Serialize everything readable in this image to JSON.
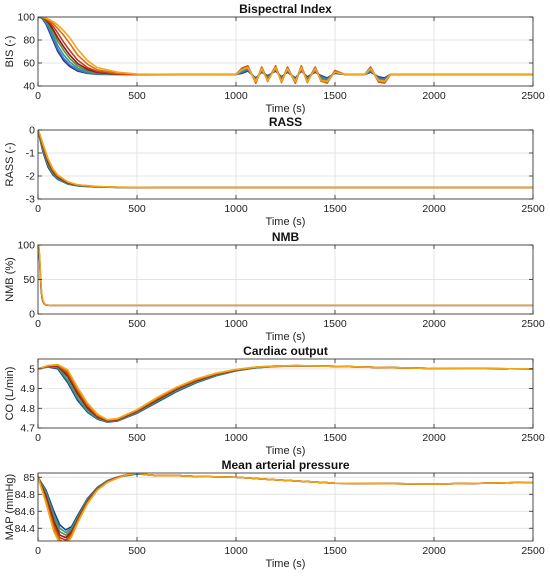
{
  "chart_data": [
    {
      "type": "line",
      "title": "Bispectral Index",
      "xlabel": "Time (s)",
      "ylabel": "BIS (-)",
      "xlim": [
        0,
        2500
      ],
      "ylim": [
        40,
        100
      ],
      "xticks": [
        0,
        500,
        1000,
        1500,
        2000,
        2500
      ],
      "yticks": [
        40,
        60,
        80,
        100
      ],
      "grid": true,
      "colors": [
        "#1f3f8f",
        "#4f6fc0",
        "#2a9a9a",
        "#6a8a3a",
        "#8b1a1a",
        "#c43a1a",
        "#e06a10",
        "#f0a818"
      ],
      "x": [
        0,
        20,
        40,
        60,
        80,
        100,
        130,
        160,
        200,
        250,
        300,
        400,
        500,
        700,
        1000,
        1030,
        1060,
        1100,
        1130,
        1160,
        1200,
        1230,
        1260,
        1300,
        1330,
        1360,
        1400,
        1430,
        1460,
        1500,
        1550,
        1650,
        1680,
        1720,
        1750,
        1780,
        1800,
        2000,
        2500
      ],
      "series": [
        {
          "values": [
            100,
            99,
            94,
            86,
            78,
            70,
            62,
            57,
            53,
            51,
            50.2,
            50,
            50,
            50,
            50,
            51,
            53,
            47,
            52,
            49,
            53,
            48,
            52,
            47,
            53,
            48,
            52,
            49,
            47,
            51,
            50,
            50,
            52,
            48,
            47,
            50,
            50,
            50,
            50
          ]
        },
        {
          "values": [
            100,
            99.5,
            95,
            88,
            80,
            72,
            64,
            58.5,
            54,
            51.5,
            50.4,
            50,
            50,
            50,
            50,
            52,
            54,
            46,
            53,
            48,
            54,
            47,
            53,
            46,
            54,
            47,
            53,
            48,
            46,
            52,
            50,
            50,
            53,
            47,
            46,
            50,
            50,
            50,
            50
          ]
        },
        {
          "values": [
            100,
            99.6,
            96,
            90,
            83,
            75,
            67,
            61,
            55.5,
            52.3,
            50.8,
            50.1,
            50,
            50,
            50,
            53,
            55,
            45,
            54,
            47,
            55,
            46,
            54,
            45,
            55,
            46,
            54,
            47,
            45,
            52,
            50,
            50,
            54,
            46,
            45,
            50,
            50,
            50,
            50
          ]
        },
        {
          "values": [
            100,
            99.7,
            97,
            92,
            86,
            79,
            71,
            64,
            57.5,
            53.3,
            51.2,
            50.2,
            50,
            50,
            50,
            54,
            56,
            44,
            55,
            46,
            56,
            45,
            55,
            44,
            56,
            45,
            55,
            46,
            44,
            53,
            50,
            50,
            55,
            45,
            44,
            50,
            50,
            50,
            50
          ]
        },
        {
          "values": [
            100,
            99.8,
            97.5,
            93.5,
            88,
            82,
            74,
            67,
            59.5,
            54.5,
            51.8,
            50.3,
            50,
            50,
            50,
            55,
            57,
            43,
            56,
            45,
            57,
            44,
            56,
            43,
            57,
            44,
            56,
            45,
            43,
            53,
            50,
            50,
            56,
            44,
            43,
            50,
            50,
            50,
            50
          ]
        },
        {
          "values": [
            100,
            99.9,
            98,
            95,
            91,
            86,
            78,
            71,
            62.5,
            56,
            52.5,
            50.5,
            50.1,
            50,
            50,
            55.5,
            57.5,
            42.5,
            56.5,
            44.5,
            57.5,
            43.5,
            56.5,
            42.5,
            57.5,
            43.5,
            56.5,
            44.5,
            42.5,
            53.5,
            50,
            50,
            56.5,
            43.5,
            42.5,
            50,
            50,
            50,
            50
          ]
        },
        {
          "values": [
            100,
            100,
            98.6,
            96.5,
            93.5,
            90,
            84,
            77,
            67,
            59,
            54,
            51,
            50.2,
            50,
            50,
            55,
            57,
            43,
            56,
            44,
            57,
            43,
            56,
            43,
            57,
            43,
            56,
            44,
            43,
            53,
            50,
            50,
            56,
            44,
            43,
            50,
            50,
            50,
            50
          ]
        },
        {
          "values": [
            100,
            100,
            99,
            97.5,
            95.5,
            93,
            88,
            82,
            72,
            62,
            56,
            52,
            50.4,
            50,
            50,
            54,
            56,
            44,
            55,
            45,
            56,
            44,
            55,
            44,
            56,
            44,
            55,
            45,
            44,
            52,
            50,
            50,
            55,
            45,
            44,
            50,
            50,
            50,
            50
          ]
        }
      ]
    },
    {
      "type": "line",
      "title": "RASS",
      "xlabel": "Time (s)",
      "ylabel": "RASS (-)",
      "xlim": [
        0,
        2500
      ],
      "ylim": [
        -3,
        0
      ],
      "xticks": [
        0,
        500,
        1000,
        1500,
        2000,
        2500
      ],
      "yticks": [
        -3,
        -2,
        -1,
        0
      ],
      "grid": true,
      "colors": [
        "#1f3f8f",
        "#2a9a9a",
        "#6a8a3a",
        "#8b1a1a",
        "#e06a10",
        "#f0a818"
      ],
      "x": [
        0,
        10,
        25,
        50,
        75,
        100,
        150,
        200,
        300,
        400,
        600,
        1000,
        2500
      ],
      "series": [
        {
          "values": [
            0,
            -0.4,
            -0.95,
            -1.6,
            -1.95,
            -2.15,
            -2.35,
            -2.43,
            -2.48,
            -2.49,
            -2.5,
            -2.5,
            -2.5
          ]
        },
        {
          "values": [
            0,
            -0.35,
            -0.88,
            -1.52,
            -1.9,
            -2.12,
            -2.34,
            -2.42,
            -2.48,
            -2.49,
            -2.5,
            -2.5,
            -2.5
          ]
        },
        {
          "values": [
            0,
            -0.3,
            -0.8,
            -1.45,
            -1.85,
            -2.08,
            -2.32,
            -2.41,
            -2.47,
            -2.49,
            -2.5,
            -2.5,
            -2.5
          ]
        },
        {
          "values": [
            0,
            -0.25,
            -0.72,
            -1.38,
            -1.8,
            -2.04,
            -2.3,
            -2.4,
            -2.47,
            -2.49,
            -2.5,
            -2.5,
            -2.5
          ]
        },
        {
          "values": [
            0,
            -0.22,
            -0.66,
            -1.3,
            -1.74,
            -2.0,
            -2.27,
            -2.39,
            -2.46,
            -2.49,
            -2.5,
            -2.5,
            -2.5
          ]
        },
        {
          "values": [
            0,
            -0.2,
            -0.6,
            -1.22,
            -1.68,
            -1.96,
            -2.25,
            -2.38,
            -2.46,
            -2.48,
            -2.5,
            -2.5,
            -2.5
          ]
        }
      ]
    },
    {
      "type": "line",
      "title": "NMB",
      "xlabel": "Time (s)",
      "ylabel": "NMB (%)",
      "xlim": [
        0,
        2500
      ],
      "ylim": [
        0,
        100
      ],
      "xticks": [
        0,
        500,
        1000,
        1500,
        2000,
        2500
      ],
      "yticks": [
        0,
        50,
        100
      ],
      "grid": true,
      "colors": [
        "#1f3f8f",
        "#8b1a1a",
        "#f0a818"
      ],
      "x": [
        0,
        4,
        8,
        12,
        16,
        20,
        25,
        30,
        40,
        60,
        100,
        200,
        2500
      ],
      "series": [
        {
          "values": [
            100,
            95,
            80,
            55,
            35,
            24,
            18,
            15,
            13,
            12.5,
            12.5,
            12.5,
            12.5
          ]
        },
        {
          "values": [
            100,
            96,
            83,
            58,
            37,
            25,
            19,
            15.5,
            13.2,
            12.5,
            12.5,
            12.5,
            12.5
          ]
        },
        {
          "values": [
            100,
            97,
            86,
            62,
            40,
            27,
            20,
            16,
            13.4,
            12.6,
            12.5,
            12.5,
            12.5
          ]
        }
      ]
    },
    {
      "type": "line",
      "title": "Cardiac output",
      "xlabel": "Time (s)",
      "ylabel": "CO (L/min)",
      "xlim": [
        0,
        2500
      ],
      "ylim": [
        4.7,
        5.05
      ],
      "xticks": [
        0,
        500,
        1000,
        1500,
        2000,
        2500
      ],
      "yticks": [
        4.7,
        4.8,
        4.9,
        5.0
      ],
      "grid": true,
      "colors": [
        "#1f3f8f",
        "#2a9a9a",
        "#6a8a3a",
        "#8b1a1a",
        "#c43a1a",
        "#e06a10",
        "#f0a818"
      ],
      "x": [
        0,
        50,
        100,
        150,
        200,
        250,
        300,
        350,
        400,
        500,
        600,
        700,
        800,
        900,
        1000,
        1100,
        1200,
        1300,
        1400,
        1500,
        1700,
        2000,
        2500
      ],
      "series": [
        {
          "values": [
            5.0,
            5.01,
            5.0,
            4.93,
            4.84,
            4.78,
            4.745,
            4.73,
            4.735,
            4.775,
            4.83,
            4.885,
            4.93,
            4.965,
            4.99,
            5.005,
            5.012,
            5.015,
            5.015,
            5.013,
            5.008,
            5.002,
            5.0
          ]
        },
        {
          "values": [
            5.0,
            5.012,
            5.005,
            4.94,
            4.85,
            4.785,
            4.748,
            4.732,
            4.737,
            4.778,
            4.834,
            4.889,
            4.933,
            4.967,
            4.991,
            5.006,
            5.013,
            5.015,
            5.015,
            5.013,
            5.008,
            5.002,
            5.0
          ]
        },
        {
          "values": [
            5.0,
            5.013,
            5.01,
            4.955,
            4.865,
            4.795,
            4.752,
            4.734,
            4.739,
            4.781,
            4.838,
            4.893,
            4.937,
            4.97,
            4.993,
            5.007,
            5.013,
            5.015,
            5.015,
            5.013,
            5.008,
            5.002,
            5.0
          ]
        },
        {
          "values": [
            5.0,
            5.014,
            5.013,
            4.965,
            4.875,
            4.802,
            4.756,
            4.736,
            4.741,
            4.784,
            4.842,
            4.897,
            4.94,
            4.972,
            4.994,
            5.008,
            5.014,
            5.016,
            5.015,
            5.013,
            5.008,
            5.002,
            5.0
          ]
        },
        {
          "values": [
            5.0,
            5.015,
            5.016,
            4.975,
            4.885,
            4.81,
            4.76,
            4.738,
            4.743,
            4.787,
            4.846,
            4.9,
            4.943,
            4.974,
            4.995,
            5.008,
            5.014,
            5.016,
            5.015,
            5.013,
            5.008,
            5.002,
            5.0
          ]
        },
        {
          "values": [
            5.0,
            5.016,
            5.019,
            4.985,
            4.895,
            4.818,
            4.765,
            4.74,
            4.745,
            4.79,
            4.85,
            4.904,
            4.946,
            4.976,
            4.996,
            5.009,
            5.014,
            5.016,
            5.015,
            5.013,
            5.008,
            5.002,
            5.0
          ]
        },
        {
          "values": [
            5.0,
            5.017,
            5.022,
            4.995,
            4.905,
            4.826,
            4.77,
            4.742,
            4.747,
            4.793,
            4.854,
            4.907,
            4.949,
            4.978,
            4.997,
            5.009,
            5.014,
            5.016,
            5.015,
            5.013,
            5.008,
            5.002,
            5.0
          ]
        }
      ]
    },
    {
      "type": "line",
      "title": "Mean arterial pressure",
      "xlabel": "Time (s)",
      "ylabel": "MAP (mmHg)",
      "xlim": [
        0,
        2500
      ],
      "ylim": [
        84.25,
        85.05
      ],
      "xticks": [
        0,
        500,
        1000,
        1500,
        2000,
        2500
      ],
      "yticks": [
        84.4,
        84.6,
        84.8,
        85.0
      ],
      "yticklabels": [
        "84.4",
        "84.6",
        "84.8",
        "85"
      ],
      "grid": true,
      "colors": [
        "#1f3f8f",
        "#2a9a9a",
        "#6a8a3a",
        "#8b1a1a",
        "#c43a1a",
        "#e06a10",
        "#f0a818"
      ],
      "x": [
        0,
        40,
        80,
        110,
        140,
        170,
        200,
        250,
        300,
        350,
        400,
        450,
        500,
        550,
        600,
        700,
        800,
        1000,
        1200,
        1500,
        2000,
        2500
      ],
      "series": [
        {
          "values": [
            85.0,
            84.85,
            84.6,
            84.44,
            84.38,
            84.42,
            84.55,
            84.75,
            84.88,
            84.96,
            85.0,
            85.02,
            85.04,
            85.03,
            85.02,
            85.02,
            85.01,
            85.0,
            84.97,
            84.93,
            84.92,
            84.94
          ]
        },
        {
          "values": [
            85.0,
            84.83,
            84.56,
            84.4,
            84.35,
            84.4,
            84.53,
            84.74,
            84.87,
            84.96,
            85.0,
            85.02,
            85.04,
            85.03,
            85.02,
            85.02,
            85.01,
            85.0,
            84.97,
            84.93,
            84.92,
            84.94
          ]
        },
        {
          "values": [
            85.0,
            84.8,
            84.52,
            84.36,
            84.32,
            84.38,
            84.51,
            84.73,
            84.87,
            84.95,
            85.0,
            85.03,
            85.05,
            85.03,
            85.02,
            85.02,
            85.01,
            85.0,
            84.97,
            84.93,
            84.92,
            84.94
          ]
        },
        {
          "values": [
            85.0,
            84.78,
            84.48,
            84.32,
            84.29,
            84.36,
            84.5,
            84.72,
            84.86,
            84.95,
            85.0,
            85.03,
            85.05,
            85.03,
            85.02,
            85.02,
            85.01,
            85.0,
            84.97,
            84.93,
            84.92,
            84.94
          ]
        },
        {
          "values": [
            85.0,
            84.75,
            84.44,
            84.29,
            84.26,
            84.34,
            84.49,
            84.71,
            84.86,
            84.95,
            85.0,
            85.03,
            85.05,
            85.03,
            85.02,
            85.02,
            85.01,
            85.0,
            84.97,
            84.93,
            84.92,
            84.94
          ]
        },
        {
          "values": [
            85.0,
            84.72,
            84.4,
            84.26,
            84.23,
            84.32,
            84.48,
            84.7,
            84.85,
            84.94,
            84.99,
            85.03,
            85.05,
            85.03,
            85.02,
            85.02,
            85.01,
            85.0,
            84.97,
            84.93,
            84.92,
            84.94
          ]
        },
        {
          "values": [
            85.0,
            84.7,
            84.36,
            84.22,
            84.2,
            84.3,
            84.46,
            84.69,
            84.85,
            84.94,
            84.99,
            85.03,
            85.05,
            85.03,
            85.02,
            85.02,
            85.01,
            85.0,
            84.97,
            84.93,
            84.92,
            84.94
          ]
        }
      ]
    }
  ]
}
